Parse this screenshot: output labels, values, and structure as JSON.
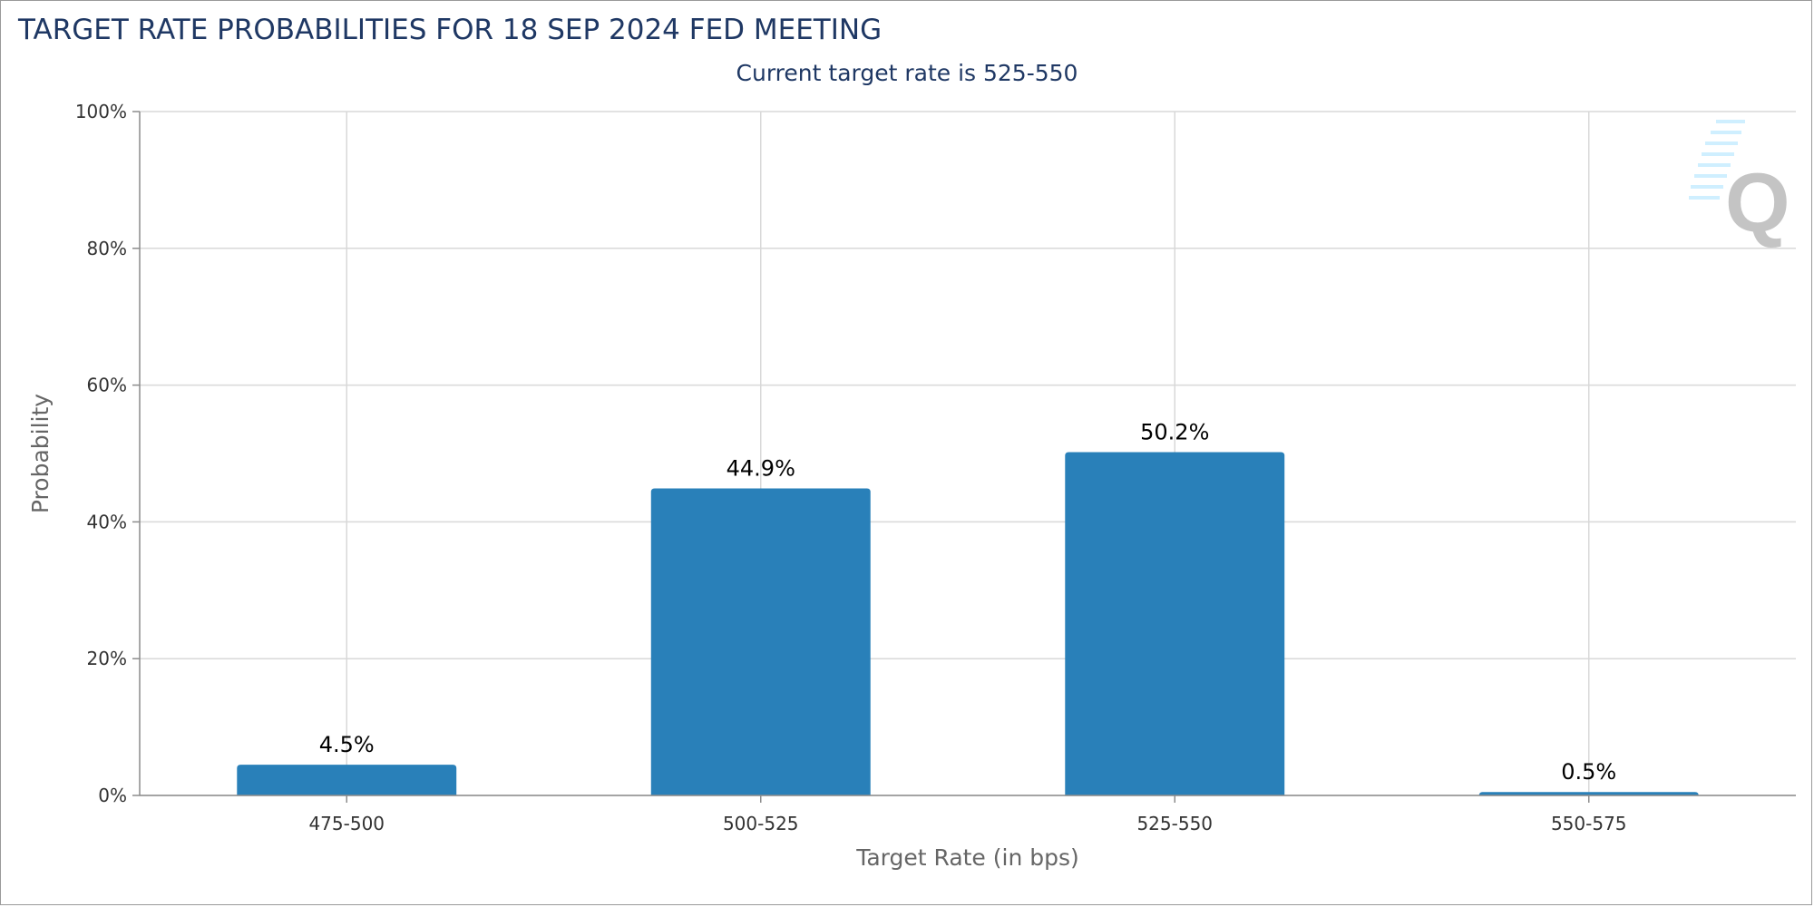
{
  "chart_data": {
    "type": "bar",
    "title": "TARGET RATE PROBABILITIES FOR 18 SEP 2024 FED MEETING",
    "subtitle": "Current target rate is 525-550",
    "xlabel": "Target Rate (in bps)",
    "ylabel": "Probability",
    "categories": [
      "475-500",
      "500-525",
      "525-550",
      "550-575"
    ],
    "values": [
      4.5,
      44.9,
      50.2,
      0.5
    ],
    "value_labels": [
      "4.5%",
      "44.9%",
      "50.2%",
      "0.5%"
    ],
    "ylim": [
      0,
      100
    ],
    "yticks": [
      0,
      20,
      40,
      60,
      80,
      100
    ],
    "ytick_labels": [
      "0%",
      "20%",
      "40%",
      "60%",
      "80%",
      "100%"
    ],
    "grid": true,
    "bar_color": "#2980b9",
    "watermark": "Q"
  }
}
